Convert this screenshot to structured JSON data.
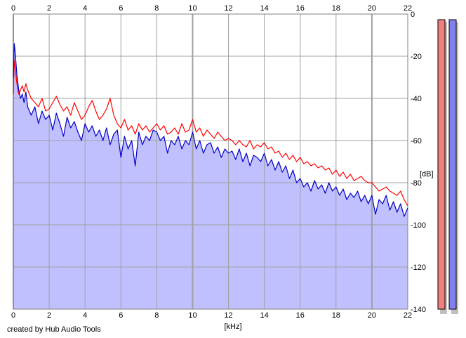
{
  "credit": "created by Hub Audio Tools",
  "chart_data": {
    "type": "line",
    "title": "",
    "xlabel": "[kHz]",
    "ylabel": "[dB]",
    "xlim": [
      0,
      22
    ],
    "ylim": [
      -140,
      0
    ],
    "x_ticks": [
      0,
      2,
      4,
      6,
      8,
      10,
      12,
      14,
      16,
      18,
      20,
      22
    ],
    "y_ticks": [
      0,
      -20,
      -40,
      -60,
      -80,
      -100,
      -120,
      -140
    ],
    "y_tick_labels": [
      "0",
      "-20",
      "-40",
      "-60",
      "-80",
      "-100",
      "-120",
      "-140"
    ],
    "grid": true,
    "colors": {
      "fill": "#c0c0ff",
      "left_channel": "#ff0000",
      "right_channel": "#0000c8",
      "grid": "#a0a0a0",
      "meter_left": "#f08080",
      "meter_right": "#8080f0"
    },
    "series": [
      {
        "color": "#ff0000",
        "x": [
          0,
          0.05,
          0.1,
          0.2,
          0.3,
          0.4,
          0.5,
          0.6,
          0.7,
          0.8,
          1,
          1.2,
          1.4,
          1.6,
          1.8,
          2,
          2.2,
          2.4,
          2.6,
          2.8,
          3,
          3.2,
          3.4,
          3.6,
          3.8,
          4,
          4.2,
          4.4,
          4.6,
          4.8,
          5,
          5.2,
          5.4,
          5.6,
          5.8,
          6,
          6.2,
          6.4,
          6.6,
          6.8,
          7,
          7.2,
          7.4,
          7.6,
          7.8,
          8,
          8.2,
          8.4,
          8.6,
          8.8,
          9,
          9.2,
          9.4,
          9.6,
          9.8,
          10,
          10.2,
          10.4,
          10.6,
          10.8,
          11,
          11.2,
          11.4,
          11.6,
          11.8,
          12,
          12.2,
          12.4,
          12.6,
          12.8,
          13,
          13.2,
          13.4,
          13.6,
          13.8,
          14,
          14.2,
          14.4,
          14.6,
          14.8,
          15,
          15.2,
          15.4,
          15.6,
          15.8,
          16,
          16.2,
          16.4,
          16.6,
          16.8,
          17,
          17.2,
          17.4,
          17.6,
          17.8,
          18,
          18.2,
          18.4,
          18.6,
          18.8,
          19,
          19.2,
          19.4,
          19.6,
          19.8,
          20,
          20.2,
          20.4,
          20.6,
          20.8,
          21,
          21.2,
          21.4,
          21.6,
          21.8,
          22
        ],
        "y": [
          -38,
          -22,
          -26,
          -33,
          -38,
          -36,
          -34,
          -37,
          -33,
          -36,
          -40,
          -42,
          -44,
          -40,
          -46,
          -45,
          -42,
          -39,
          -43,
          -46,
          -44,
          -48,
          -42,
          -46,
          -50,
          -48,
          -44,
          -41,
          -46,
          -50,
          -48,
          -45,
          -40,
          -48,
          -52,
          -54,
          -50,
          -55,
          -53,
          -57,
          -52,
          -55,
          -53,
          -56,
          -54,
          -52,
          -55,
          -53,
          -57,
          -56,
          -54,
          -57,
          -52,
          -56,
          -55,
          -50,
          -56,
          -54,
          -58,
          -55,
          -57,
          -59,
          -56,
          -58,
          -60,
          -59,
          -60,
          -62,
          -60,
          -62,
          -63,
          -60,
          -64,
          -62,
          -63,
          -61,
          -64,
          -63,
          -66,
          -65,
          -68,
          -66,
          -69,
          -67,
          -70,
          -68,
          -71,
          -70,
          -72,
          -71,
          -73,
          -72,
          -74,
          -73,
          -76,
          -74,
          -77,
          -75,
          -78,
          -76,
          -79,
          -78,
          -77,
          -79,
          -80,
          -80,
          -82,
          -84,
          -83,
          -82,
          -84,
          -85,
          -86,
          -84,
          -88,
          -91
        ]
      },
      {
        "color": "#0000c8",
        "x": [
          0,
          0.05,
          0.1,
          0.2,
          0.3,
          0.4,
          0.5,
          0.6,
          0.7,
          0.8,
          1,
          1.2,
          1.4,
          1.6,
          1.8,
          2,
          2.2,
          2.4,
          2.6,
          2.8,
          3,
          3.2,
          3.4,
          3.6,
          3.8,
          4,
          4.2,
          4.4,
          4.6,
          4.8,
          5,
          5.2,
          5.4,
          5.6,
          5.8,
          6,
          6.2,
          6.4,
          6.6,
          6.8,
          7,
          7.2,
          7.4,
          7.6,
          7.8,
          8,
          8.2,
          8.4,
          8.6,
          8.8,
          9,
          9.2,
          9.4,
          9.6,
          9.8,
          10,
          10.2,
          10.4,
          10.6,
          10.8,
          11,
          11.2,
          11.4,
          11.6,
          11.8,
          12,
          12.2,
          12.4,
          12.6,
          12.8,
          13,
          13.2,
          13.4,
          13.6,
          13.8,
          14,
          14.2,
          14.4,
          14.6,
          14.8,
          15,
          15.2,
          15.4,
          15.6,
          15.8,
          16,
          16.2,
          16.4,
          16.6,
          16.8,
          17,
          17.2,
          17.4,
          17.6,
          17.8,
          18,
          18.2,
          18.4,
          18.6,
          18.8,
          19,
          19.2,
          19.4,
          19.6,
          19.8,
          20,
          20.2,
          20.4,
          20.6,
          20.8,
          21,
          21.2,
          21.4,
          21.6,
          21.8,
          22
        ],
        "y": [
          -30,
          -14,
          -18,
          -29,
          -36,
          -40,
          -38,
          -42,
          -37,
          -44,
          -48,
          -44,
          -52,
          -46,
          -50,
          -48,
          -55,
          -47,
          -52,
          -58,
          -49,
          -54,
          -51,
          -56,
          -60,
          -52,
          -56,
          -53,
          -58,
          -55,
          -60,
          -54,
          -62,
          -57,
          -55,
          -68,
          -58,
          -64,
          -60,
          -72,
          -56,
          -62,
          -58,
          -60,
          -55,
          -56,
          -60,
          -58,
          -66,
          -60,
          -62,
          -58,
          -64,
          -60,
          -62,
          -56,
          -64,
          -60,
          -66,
          -62,
          -61,
          -66,
          -63,
          -68,
          -64,
          -66,
          -65,
          -69,
          -64,
          -70,
          -66,
          -72,
          -67,
          -68,
          -70,
          -66,
          -72,
          -69,
          -74,
          -70,
          -75,
          -72,
          -78,
          -74,
          -80,
          -78,
          -82,
          -80,
          -84,
          -79,
          -83,
          -81,
          -85,
          -80,
          -84,
          -82,
          -86,
          -83,
          -88,
          -85,
          -87,
          -84,
          -89,
          -86,
          -90,
          -86,
          -95,
          -88,
          -90,
          -86,
          -93,
          -89,
          -94,
          -90,
          -96,
          -92
        ]
      }
    ]
  }
}
